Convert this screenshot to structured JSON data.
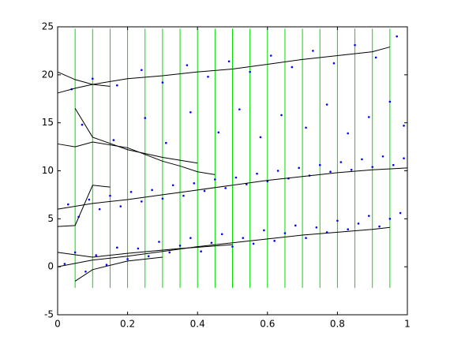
{
  "chart_data": {
    "type": "scatter",
    "xlim": [
      0,
      1
    ],
    "ylim": [
      -5,
      25
    ],
    "xticks": [
      0,
      0.2,
      0.4,
      0.6,
      0.8,
      1
    ],
    "yticks": [
      -5,
      0,
      5,
      10,
      15,
      20,
      25
    ],
    "grid": false,
    "series": [
      {
        "type": "scatter",
        "color": "#0000ff",
        "x": [
          0.02,
          0.05,
          0.08,
          0.11,
          0.14,
          0.17,
          0.2,
          0.23,
          0.26,
          0.29,
          0.32,
          0.35,
          0.38,
          0.41,
          0.44,
          0.47,
          0.5,
          0.53,
          0.56,
          0.59,
          0.62,
          0.65,
          0.68,
          0.71,
          0.74,
          0.77,
          0.8,
          0.83,
          0.86,
          0.89,
          0.92,
          0.95,
          0.98,
          0.03,
          0.06,
          0.09,
          0.12,
          0.15,
          0.18,
          0.21,
          0.24,
          0.27,
          0.3,
          0.33,
          0.36,
          0.39,
          0.42,
          0.45,
          0.48,
          0.51,
          0.54,
          0.57,
          0.6,
          0.63,
          0.66,
          0.69,
          0.72,
          0.75,
          0.78,
          0.81,
          0.84,
          0.87,
          0.9,
          0.93,
          0.96,
          0.99,
          0.07,
          0.16,
          0.25,
          0.31,
          0.38,
          0.46,
          0.52,
          0.58,
          0.64,
          0.71,
          0.77,
          0.83,
          0.89,
          0.95,
          0.99,
          0.04,
          0.1,
          0.17,
          0.24,
          0.3,
          0.37,
          0.43,
          0.49,
          0.55,
          0.61,
          0.67,
          0.73,
          0.79,
          0.85,
          0.91,
          0.97
        ],
        "values": [
          0.3,
          1.5,
          -0.5,
          1.2,
          0.2,
          2.0,
          0.8,
          1.9,
          1.1,
          2.6,
          1.5,
          2.2,
          3.0,
          1.6,
          2.5,
          3.4,
          2.1,
          3.0,
          2.4,
          3.8,
          2.7,
          3.5,
          4.3,
          3.0,
          4.1,
          3.6,
          4.8,
          3.9,
          4.5,
          5.3,
          4.2,
          5.0,
          5.6,
          6.5,
          5.2,
          7.0,
          6.0,
          7.4,
          6.3,
          7.8,
          6.8,
          8.0,
          7.1,
          8.5,
          7.4,
          8.7,
          7.9,
          9.1,
          8.2,
          9.3,
          8.6,
          9.7,
          8.9,
          10.0,
          9.2,
          10.3,
          9.5,
          10.6,
          9.9,
          10.9,
          10.1,
          11.2,
          10.4,
          11.5,
          10.6,
          11.3,
          14.8,
          13.2,
          15.5,
          12.9,
          16.1,
          14.0,
          16.4,
          13.5,
          15.8,
          14.5,
          16.9,
          13.9,
          15.6,
          17.2,
          14.7,
          18.5,
          19.6,
          18.9,
          20.5,
          19.2,
          21.0,
          19.8,
          21.4,
          20.3,
          22.0,
          20.8,
          22.5,
          21.2,
          23.1,
          21.8,
          24.0
        ]
      },
      {
        "type": "vlines",
        "color": "#00dd00",
        "x": [
          0.05,
          0.1,
          0.15,
          0.2,
          0.25,
          0.3,
          0.35,
          0.4,
          0.45,
          0.5,
          0.55,
          0.6,
          0.65,
          0.7,
          0.75,
          0.8,
          0.85,
          0.9,
          0.95
        ],
        "ylow": -2.2,
        "yhigh": 24.8
      },
      {
        "type": "line",
        "color": "#000000",
        "x": [
          0,
          0.1,
          0.2,
          0.3,
          0.4,
          0.5,
          0.6,
          0.7,
          0.8,
          0.9,
          0.95
        ],
        "values": [
          0,
          0.7,
          1.1,
          1.6,
          2.1,
          2.5,
          2.9,
          3.3,
          3.6,
          3.9,
          4.1
        ]
      },
      {
        "type": "line",
        "color": "#000000",
        "x": [
          0,
          0.05,
          0.1,
          0.2,
          0.3,
          0.4,
          0.5,
          0.6,
          0.7,
          0.8,
          0.9,
          1
        ],
        "values": [
          6,
          6.3,
          6.6,
          7.0,
          7.5,
          8.0,
          8.5,
          9.0,
          9.4,
          9.8,
          10.1,
          10.3
        ]
      },
      {
        "type": "line",
        "color": "#000000",
        "x": [
          0,
          0.05,
          0.1,
          0.2,
          0.3,
          0.4,
          0.5,
          0.6,
          0.7,
          0.8,
          0.9,
          0.95
        ],
        "values": [
          20.3,
          19.5,
          19.0,
          19.6,
          19.9,
          20.3,
          20.6,
          21.1,
          21.6,
          22.0,
          22.4,
          22.9
        ]
      },
      {
        "type": "line",
        "color": "#000000",
        "x": [
          0,
          0.05,
          0.1,
          0.2,
          0.25,
          0.3,
          0.35,
          0.4,
          0.45
        ],
        "values": [
          12.8,
          12.5,
          13.0,
          12.4,
          11.7,
          11.0,
          10.5,
          9.9,
          9.6
        ]
      },
      {
        "type": "line",
        "color": "#000000",
        "x": [
          0.05,
          0.1,
          0.2,
          0.3
        ],
        "values": [
          -1.5,
          -0.3,
          0.6,
          1.0
        ]
      },
      {
        "type": "line",
        "color": "#000000",
        "x": [
          0,
          0.05,
          0.1,
          0.15
        ],
        "values": [
          4.2,
          4.3,
          8.5,
          8.3
        ]
      },
      {
        "type": "line",
        "color": "#000000",
        "x": [
          0.05,
          0.1,
          0.2,
          0.3,
          0.4
        ],
        "values": [
          16.5,
          13.5,
          12.2,
          11.4,
          10.8
        ]
      },
      {
        "type": "line",
        "color": "#000000",
        "x": [
          0,
          0.05,
          0.1,
          0.15
        ],
        "values": [
          18.1,
          18.6,
          19.0,
          18.8
        ]
      },
      {
        "type": "line",
        "color": "#000000",
        "x": [
          0,
          0.1,
          0.2,
          0.35,
          0.5
        ],
        "values": [
          1.5,
          1.0,
          1.4,
          1.9,
          2.3
        ]
      }
    ]
  }
}
